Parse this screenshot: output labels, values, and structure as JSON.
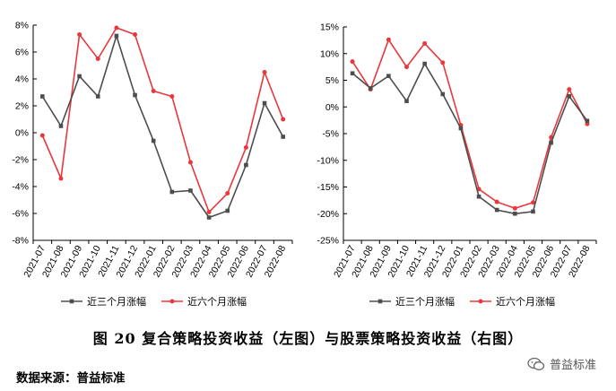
{
  "caption": "图 20   复合策略投资收益（左图）与股票策略投资收益（右图）",
  "source_note": "数据来源：普益标准",
  "watermark": "普益标准",
  "watermark_icon": "wechat-icon",
  "chart_data": [
    {
      "type": "line",
      "x": [
        "2021-07",
        "2021-08",
        "2021-09",
        "2021-10",
        "2021-11",
        "2021-12",
        "2022-01",
        "2022-02",
        "2022-03",
        "2022-04",
        "2022-05",
        "2022-06",
        "2022-07",
        "2022-08"
      ],
      "yticks": [
        "8%",
        "6%",
        "4%",
        "2%",
        "0%",
        "-2%",
        "-4%",
        "-6%",
        "-8%"
      ],
      "ylim": [
        -8,
        8
      ],
      "grid": false,
      "legend_position": "bottom",
      "series": [
        {
          "name": "近三个月涨幅",
          "color": "#4d4d4d",
          "values": [
            2.7,
            0.5,
            4.2,
            2.7,
            7.2,
            2.8,
            -0.6,
            -4.4,
            -4.3,
            -6.3,
            -5.8,
            -2.4,
            2.2,
            -0.3
          ]
        },
        {
          "name": "近六个月涨幅",
          "color": "#e8383d",
          "values": [
            -0.2,
            -3.4,
            7.3,
            5.5,
            7.8,
            7.3,
            3.1,
            2.7,
            -2.2,
            -5.9,
            -4.5,
            -1.1,
            4.5,
            1.0
          ]
        }
      ]
    },
    {
      "type": "line",
      "x": [
        "2021-07",
        "2021-08",
        "2021-09",
        "2021-10",
        "2021-11",
        "2021-12",
        "2022-01",
        "2022-02",
        "2022-03",
        "2022-04",
        "2022-05",
        "2022-06",
        "2022-07",
        "2022-08"
      ],
      "yticks": [
        "15%",
        "10%",
        "5%",
        "0%",
        "-5%",
        "-10%",
        "-15%",
        "-20%",
        "-25%"
      ],
      "ylim": [
        -25,
        15
      ],
      "grid": false,
      "legend_position": "bottom",
      "series": [
        {
          "name": "近三个月涨幅",
          "color": "#4d4d4d",
          "values": [
            6.3,
            3.5,
            5.8,
            1.1,
            8.1,
            2.4,
            -4.0,
            -16.8,
            -19.3,
            -20.0,
            -19.6,
            -6.7,
            2.0,
            -2.6
          ]
        },
        {
          "name": "近六个月涨幅",
          "color": "#e8383d",
          "values": [
            8.5,
            3.3,
            12.6,
            7.5,
            11.9,
            8.3,
            -3.4,
            -15.4,
            -17.8,
            -19.0,
            -17.9,
            -5.7,
            3.3,
            -3.2
          ]
        }
      ]
    }
  ]
}
